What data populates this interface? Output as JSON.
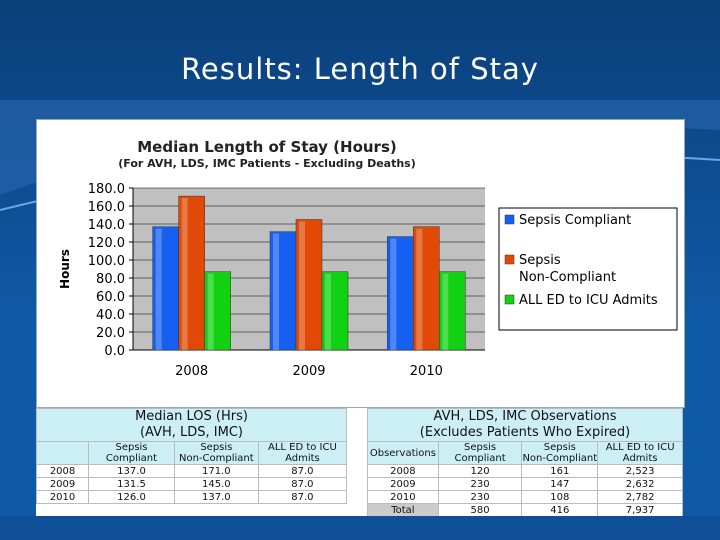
{
  "slide": {
    "title": "Results: Length of Stay"
  },
  "chart_data": {
    "type": "bar",
    "title": "Median Length of Stay (Hours)",
    "subtitle": "(For AVH, LDS, IMC Patients - Excluding Deaths)",
    "ylabel": "Hours",
    "xlabel": "",
    "ylim": [
      0,
      180
    ],
    "yticks": [
      "180.0",
      "160.0",
      "140.0",
      "120.0",
      "100.0",
      "80.0",
      "60.0",
      "40.0",
      "20.0",
      "0.0"
    ],
    "categories": [
      "2008",
      "2009",
      "2010"
    ],
    "series": [
      {
        "name": "Sepsis Compliant",
        "values": [
          137.0,
          131.5,
          126.0
        ],
        "color": "#1560f0"
      },
      {
        "name": "Sepsis Non-Compliant",
        "values": [
          171.0,
          145.0,
          137.0
        ],
        "color": "#e04a06"
      },
      {
        "name": "ALL ED to ICU Admits",
        "values": [
          87.0,
          87.0,
          87.0
        ],
        "color": "#12d012"
      }
    ],
    "legend_position": "right",
    "grid": true
  },
  "los_table": {
    "title_line1": "Median LOS (Hrs)",
    "title_line2": "(AVH, LDS, IMC)",
    "headers": [
      [
        "",
        ""
      ],
      [
        "Sepsis",
        "Compliant"
      ],
      [
        "Sepsis",
        "Non-Compliant"
      ],
      [
        "ALL ED to ICU",
        "Admits"
      ]
    ],
    "rows": [
      [
        "2008",
        "137.0",
        "171.0",
        "87.0"
      ],
      [
        "2009",
        "131.5",
        "145.0",
        "87.0"
      ],
      [
        "2010",
        "126.0",
        "137.0",
        "87.0"
      ]
    ]
  },
  "obs_table": {
    "title_line1": "AVH, LDS, IMC  Observations",
    "title_line2": "(Excludes Patients Who Expired)",
    "headers": [
      [
        "",
        "Observations"
      ],
      [
        "Sepsis",
        "Compliant"
      ],
      [
        "Sepsis",
        "Non-Compliant"
      ],
      [
        "ALL ED to ICU",
        "Admits"
      ]
    ],
    "rows": [
      [
        "2008",
        "120",
        "161",
        "2,523"
      ],
      [
        "2009",
        "230",
        "147",
        "2,632"
      ],
      [
        "2010",
        "230",
        "108",
        "2,782"
      ],
      [
        "Total",
        "580",
        "416",
        "7,937"
      ]
    ]
  }
}
